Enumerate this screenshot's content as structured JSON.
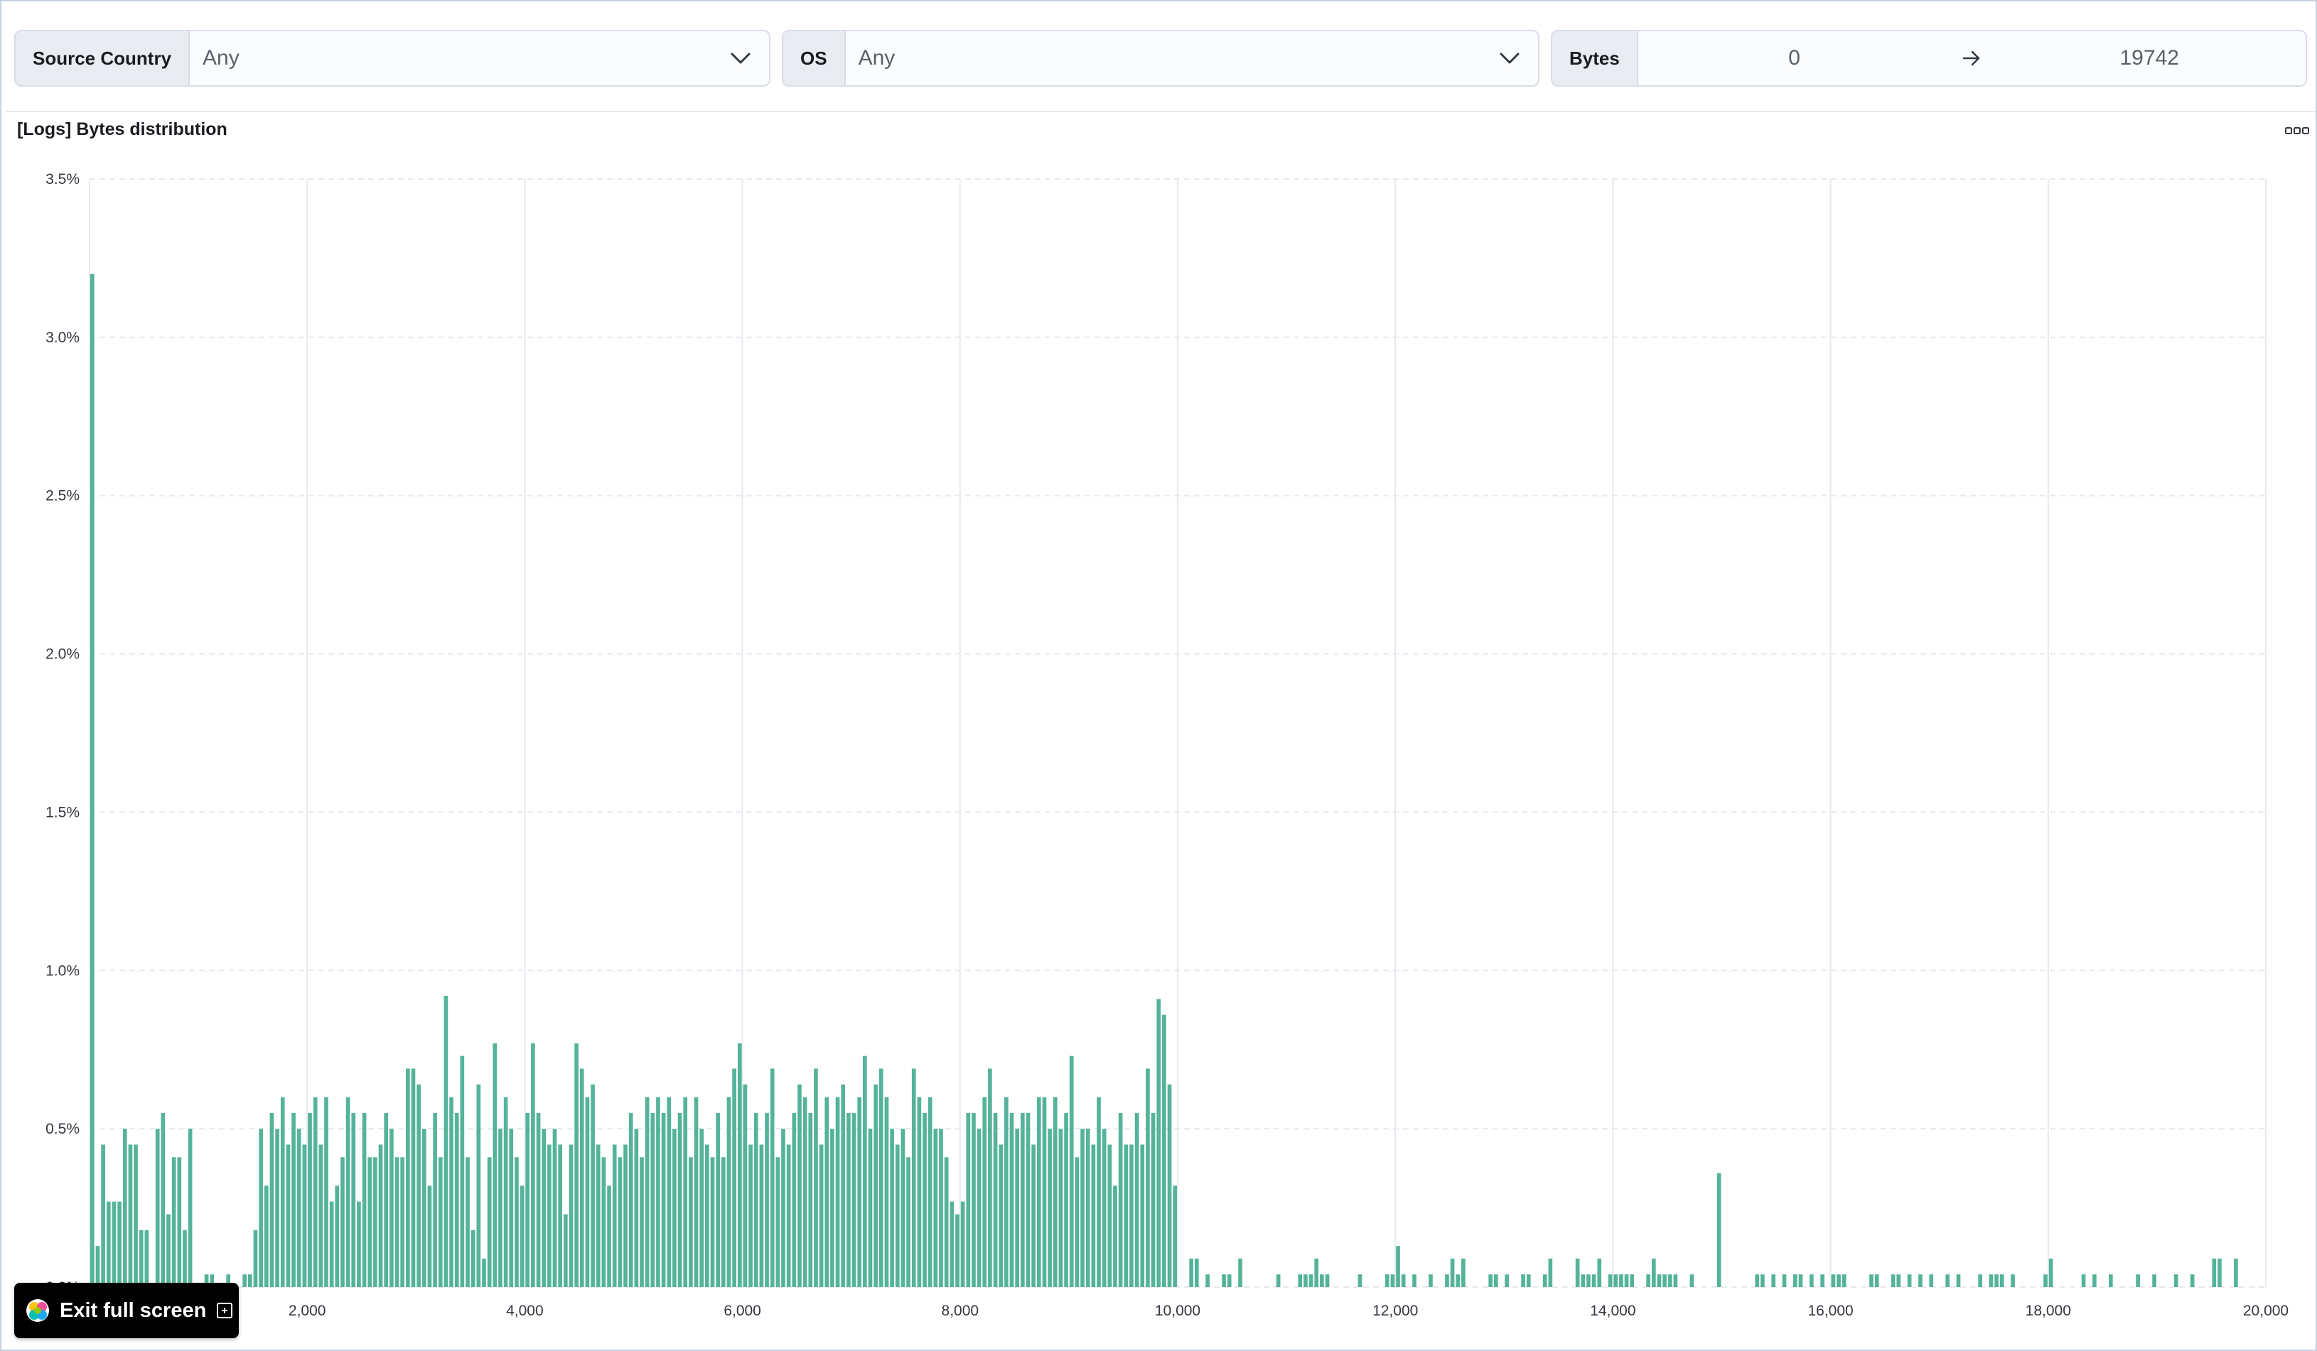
{
  "controls": {
    "source_country": {
      "label": "Source Country",
      "value": "Any"
    },
    "os": {
      "label": "OS",
      "value": "Any"
    },
    "bytes": {
      "label": "Bytes",
      "min": "0",
      "max": "19742"
    }
  },
  "panel": {
    "title": "[Logs] Bytes distribution"
  },
  "exit_full_screen": {
    "label": "Exit full screen"
  },
  "colors": {
    "bar": "#54b399",
    "grid": "#e6e9ef",
    "tick_text": "#343741"
  },
  "icons": [
    "chevron-down-icon",
    "arrow-right-icon",
    "ellipsis-icon",
    "elastic-logo-icon",
    "fullscreen-exit-icon"
  ],
  "chart_data": {
    "type": "bar",
    "title": "[Logs] Bytes distribution",
    "xlabel": "",
    "ylabel": "",
    "x_ticks": [
      "2,000",
      "4,000",
      "6,000",
      "8,000",
      "10,000",
      "12,000",
      "14,000",
      "16,000",
      "18,000",
      "20,000"
    ],
    "y_ticks": [
      "0.0%",
      "0.5%",
      "1.0%",
      "1.5%",
      "2.0%",
      "2.5%",
      "3.0%",
      "3.5%"
    ],
    "xlim": [
      0,
      20000
    ],
    "ylim": [
      0,
      3.5
    ],
    "bin_width": 50,
    "grid": true,
    "series": [
      {
        "values": [
          [
            0,
            3.2
          ],
          [
            50,
            0.13
          ],
          [
            100,
            0.45
          ],
          [
            150,
            0.27
          ],
          [
            200,
            0.27
          ],
          [
            250,
            0.27
          ],
          [
            300,
            0.5
          ],
          [
            350,
            0.45
          ],
          [
            400,
            0.45
          ],
          [
            450,
            0.18
          ],
          [
            500,
            0.18
          ],
          [
            600,
            0.5
          ],
          [
            650,
            0.55
          ],
          [
            700,
            0.23
          ],
          [
            750,
            0.41
          ],
          [
            800,
            0.41
          ],
          [
            850,
            0.18
          ],
          [
            900,
            0.5
          ],
          [
            1050,
            0.04
          ],
          [
            1100,
            0.04
          ],
          [
            1250,
            0.04
          ],
          [
            1400,
            0.04
          ],
          [
            1450,
            0.04
          ],
          [
            1500,
            0.18
          ],
          [
            1550,
            0.5
          ],
          [
            1600,
            0.32
          ],
          [
            1650,
            0.55
          ],
          [
            1700,
            0.5
          ],
          [
            1750,
            0.6
          ],
          [
            1800,
            0.45
          ],
          [
            1850,
            0.55
          ],
          [
            1900,
            0.5
          ],
          [
            1950,
            0.45
          ],
          [
            2000,
            0.55
          ],
          [
            2050,
            0.6
          ],
          [
            2100,
            0.45
          ],
          [
            2150,
            0.6
          ],
          [
            2200,
            0.27
          ],
          [
            2250,
            0.32
          ],
          [
            2300,
            0.41
          ],
          [
            2350,
            0.6
          ],
          [
            2400,
            0.55
          ],
          [
            2450,
            0.27
          ],
          [
            2500,
            0.55
          ],
          [
            2550,
            0.41
          ],
          [
            2600,
            0.41
          ],
          [
            2650,
            0.45
          ],
          [
            2700,
            0.55
          ],
          [
            2750,
            0.5
          ],
          [
            2800,
            0.41
          ],
          [
            2850,
            0.41
          ],
          [
            2900,
            0.69
          ],
          [
            2950,
            0.69
          ],
          [
            3000,
            0.64
          ],
          [
            3050,
            0.5
          ],
          [
            3100,
            0.32
          ],
          [
            3150,
            0.55
          ],
          [
            3200,
            0.41
          ],
          [
            3250,
            0.92
          ],
          [
            3300,
            0.6
          ],
          [
            3350,
            0.55
          ],
          [
            3400,
            0.73
          ],
          [
            3450,
            0.41
          ],
          [
            3500,
            0.18
          ],
          [
            3550,
            0.64
          ],
          [
            3600,
            0.09
          ],
          [
            3650,
            0.41
          ],
          [
            3700,
            0.77
          ],
          [
            3750,
            0.5
          ],
          [
            3800,
            0.6
          ],
          [
            3850,
            0.5
          ],
          [
            3900,
            0.41
          ],
          [
            3950,
            0.32
          ],
          [
            4000,
            0.55
          ],
          [
            4050,
            0.77
          ],
          [
            4100,
            0.55
          ],
          [
            4150,
            0.5
          ],
          [
            4200,
            0.45
          ],
          [
            4250,
            0.5
          ],
          [
            4300,
            0.45
          ],
          [
            4350,
            0.23
          ],
          [
            4400,
            0.45
          ],
          [
            4450,
            0.77
          ],
          [
            4500,
            0.69
          ],
          [
            4550,
            0.6
          ],
          [
            4600,
            0.64
          ],
          [
            4650,
            0.45
          ],
          [
            4700,
            0.41
          ],
          [
            4750,
            0.32
          ],
          [
            4800,
            0.45
          ],
          [
            4850,
            0.41
          ],
          [
            4900,
            0.45
          ],
          [
            4950,
            0.55
          ],
          [
            5000,
            0.5
          ],
          [
            5050,
            0.41
          ],
          [
            5100,
            0.6
          ],
          [
            5150,
            0.55
          ],
          [
            5200,
            0.6
          ],
          [
            5250,
            0.55
          ],
          [
            5300,
            0.6
          ],
          [
            5350,
            0.5
          ],
          [
            5400,
            0.55
          ],
          [
            5450,
            0.6
          ],
          [
            5500,
            0.41
          ],
          [
            5550,
            0.6
          ],
          [
            5600,
            0.5
          ],
          [
            5650,
            0.45
          ],
          [
            5700,
            0.41
          ],
          [
            5750,
            0.55
          ],
          [
            5800,
            0.41
          ],
          [
            5850,
            0.6
          ],
          [
            5900,
            0.69
          ],
          [
            5950,
            0.77
          ],
          [
            6000,
            0.64
          ],
          [
            6050,
            0.45
          ],
          [
            6100,
            0.55
          ],
          [
            6150,
            0.45
          ],
          [
            6200,
            0.55
          ],
          [
            6250,
            0.69
          ],
          [
            6300,
            0.41
          ],
          [
            6350,
            0.5
          ],
          [
            6400,
            0.45
          ],
          [
            6450,
            0.55
          ],
          [
            6500,
            0.64
          ],
          [
            6550,
            0.6
          ],
          [
            6600,
            0.55
          ],
          [
            6650,
            0.69
          ],
          [
            6700,
            0.45
          ],
          [
            6750,
            0.6
          ],
          [
            6800,
            0.5
          ],
          [
            6850,
            0.6
          ],
          [
            6900,
            0.64
          ],
          [
            6950,
            0.55
          ],
          [
            7000,
            0.55
          ],
          [
            7050,
            0.6
          ],
          [
            7100,
            0.73
          ],
          [
            7150,
            0.5
          ],
          [
            7200,
            0.64
          ],
          [
            7250,
            0.69
          ],
          [
            7300,
            0.6
          ],
          [
            7350,
            0.5
          ],
          [
            7400,
            0.45
          ],
          [
            7450,
            0.5
          ],
          [
            7500,
            0.41
          ],
          [
            7550,
            0.69
          ],
          [
            7600,
            0.6
          ],
          [
            7650,
            0.55
          ],
          [
            7700,
            0.6
          ],
          [
            7750,
            0.5
          ],
          [
            7800,
            0.5
          ],
          [
            7850,
            0.41
          ],
          [
            7900,
            0.27
          ],
          [
            7950,
            0.23
          ],
          [
            8000,
            0.27
          ],
          [
            8050,
            0.55
          ],
          [
            8100,
            0.55
          ],
          [
            8150,
            0.5
          ],
          [
            8200,
            0.6
          ],
          [
            8250,
            0.69
          ],
          [
            8300,
            0.55
          ],
          [
            8350,
            0.45
          ],
          [
            8400,
            0.6
          ],
          [
            8450,
            0.55
          ],
          [
            8500,
            0.5
          ],
          [
            8550,
            0.55
          ],
          [
            8600,
            0.55
          ],
          [
            8650,
            0.45
          ],
          [
            8700,
            0.6
          ],
          [
            8750,
            0.6
          ],
          [
            8800,
            0.5
          ],
          [
            8850,
            0.6
          ],
          [
            8900,
            0.5
          ],
          [
            8950,
            0.55
          ],
          [
            9000,
            0.73
          ],
          [
            9050,
            0.41
          ],
          [
            9100,
            0.5
          ],
          [
            9150,
            0.5
          ],
          [
            9200,
            0.45
          ],
          [
            9250,
            0.6
          ],
          [
            9300,
            0.5
          ],
          [
            9350,
            0.45
          ],
          [
            9400,
            0.32
          ],
          [
            9450,
            0.55
          ],
          [
            9500,
            0.45
          ],
          [
            9550,
            0.45
          ],
          [
            9600,
            0.55
          ],
          [
            9650,
            0.45
          ],
          [
            9700,
            0.69
          ],
          [
            9750,
            0.55
          ],
          [
            9800,
            0.91
          ],
          [
            9850,
            0.86
          ],
          [
            9900,
            0.64
          ],
          [
            9950,
            0.32
          ],
          [
            10100,
            0.09
          ],
          [
            10150,
            0.09
          ],
          [
            10250,
            0.04
          ],
          [
            10400,
            0.04
          ],
          [
            10450,
            0.04
          ],
          [
            10550,
            0.09
          ],
          [
            10900,
            0.04
          ],
          [
            11100,
            0.04
          ],
          [
            11150,
            0.04
          ],
          [
            11200,
            0.04
          ],
          [
            11250,
            0.09
          ],
          [
            11300,
            0.04
          ],
          [
            11350,
            0.04
          ],
          [
            11650,
            0.04
          ],
          [
            11900,
            0.04
          ],
          [
            11950,
            0.04
          ],
          [
            12000,
            0.13
          ],
          [
            12050,
            0.04
          ],
          [
            12150,
            0.04
          ],
          [
            12300,
            0.04
          ],
          [
            12450,
            0.04
          ],
          [
            12500,
            0.09
          ],
          [
            12550,
            0.04
          ],
          [
            12600,
            0.09
          ],
          [
            12850,
            0.04
          ],
          [
            12900,
            0.04
          ],
          [
            13000,
            0.04
          ],
          [
            13150,
            0.04
          ],
          [
            13200,
            0.04
          ],
          [
            13350,
            0.04
          ],
          [
            13400,
            0.09
          ],
          [
            13650,
            0.09
          ],
          [
            13700,
            0.04
          ],
          [
            13750,
            0.04
          ],
          [
            13800,
            0.04
          ],
          [
            13850,
            0.09
          ],
          [
            13950,
            0.04
          ],
          [
            14000,
            0.04
          ],
          [
            14050,
            0.04
          ],
          [
            14100,
            0.04
          ],
          [
            14150,
            0.04
          ],
          [
            14300,
            0.04
          ],
          [
            14350,
            0.09
          ],
          [
            14400,
            0.04
          ],
          [
            14450,
            0.04
          ],
          [
            14500,
            0.04
          ],
          [
            14550,
            0.04
          ],
          [
            14700,
            0.04
          ],
          [
            14950,
            0.36
          ],
          [
            15300,
            0.04
          ],
          [
            15350,
            0.04
          ],
          [
            15450,
            0.04
          ],
          [
            15550,
            0.04
          ],
          [
            15650,
            0.04
          ],
          [
            15700,
            0.04
          ],
          [
            15800,
            0.04
          ],
          [
            15900,
            0.04
          ],
          [
            16000,
            0.04
          ],
          [
            16050,
            0.04
          ],
          [
            16100,
            0.04
          ],
          [
            16350,
            0.04
          ],
          [
            16400,
            0.04
          ],
          [
            16550,
            0.04
          ],
          [
            16600,
            0.04
          ],
          [
            16700,
            0.04
          ],
          [
            16800,
            0.04
          ],
          [
            16900,
            0.04
          ],
          [
            17050,
            0.04
          ],
          [
            17150,
            0.04
          ],
          [
            17350,
            0.04
          ],
          [
            17450,
            0.04
          ],
          [
            17500,
            0.04
          ],
          [
            17550,
            0.04
          ],
          [
            17650,
            0.04
          ],
          [
            17950,
            0.04
          ],
          [
            18000,
            0.09
          ],
          [
            18300,
            0.04
          ],
          [
            18400,
            0.04
          ],
          [
            18550,
            0.04
          ],
          [
            18800,
            0.04
          ],
          [
            18950,
            0.04
          ],
          [
            19150,
            0.04
          ],
          [
            19300,
            0.04
          ],
          [
            19500,
            0.09
          ],
          [
            19550,
            0.09
          ],
          [
            19700,
            0.09
          ]
        ]
      }
    ]
  }
}
